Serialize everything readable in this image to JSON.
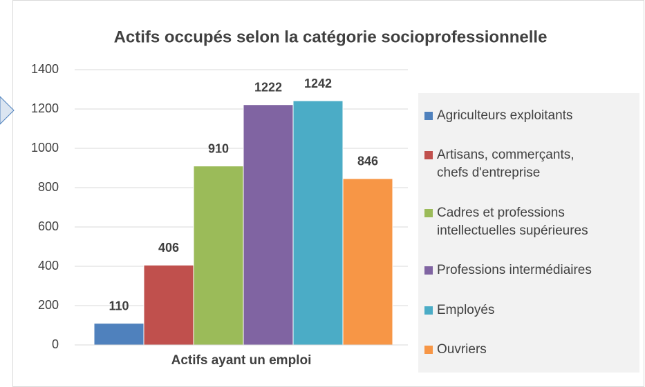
{
  "chart_data": {
    "type": "bar",
    "title": "Actifs occupés selon la catégorie socioprofessionnelle",
    "categories": [
      "Actifs ayant un emploi"
    ],
    "series": [
      {
        "name": "Agriculteurs exploitants",
        "color": "#4f81bd",
        "values": [
          110
        ]
      },
      {
        "name": "Artisans, commerçants, chefs d'entreprise",
        "color": "#c0504d",
        "values": [
          406
        ]
      },
      {
        "name": "Cadres et professions intellectuelles supérieures",
        "color": "#9bbb59",
        "values": [
          910
        ]
      },
      {
        "name": "Professions intermédiaires",
        "color": "#8064a2",
        "values": [
          1222
        ]
      },
      {
        "name": "Employés",
        "color": "#4bacc6",
        "values": [
          1242
        ]
      },
      {
        "name": "Ouvriers",
        "color": "#f79646",
        "values": [
          846
        ]
      }
    ],
    "ylim": [
      0,
      1400
    ],
    "yticks": [
      0,
      200,
      400,
      600,
      800,
      1000,
      1200,
      1400
    ],
    "grid": true,
    "legend": "right"
  }
}
